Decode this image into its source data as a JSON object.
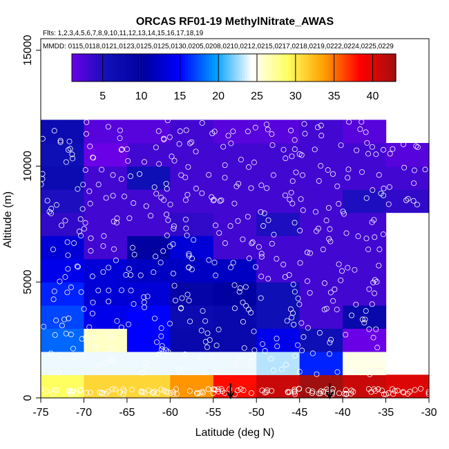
{
  "chart_data": {
    "type": "heatmap",
    "title": "ORCAS RF01-19 MethylNitrate_AWAS",
    "subtitle_flights": "Flts: 1,2,3,4,5,6,7,8,9,10,11,12,13,14,15,16,17,18,19",
    "subtitle_mmdd": "MMDD: 0115,0118,0121,0123,0125,0125,0130,0205,0208,0210,0212,0215,0217,0218,0219,0222,0224,0225,0229",
    "xlabel": "Latitude (deg N)",
    "ylabel": "Altitude (m)",
    "xlim": [
      -75,
      -30
    ],
    "ylim": [
      0,
      15500
    ],
    "x_ticks": [
      "-75",
      "-70",
      "-65",
      "-60",
      "-55",
      "-50",
      "-45",
      "-40",
      "-35",
      "-30"
    ],
    "y_ticks": [
      "0",
      "5000",
      "10000",
      "15000"
    ],
    "colorbar": {
      "range": [
        1,
        43
      ],
      "tick_labels": [
        "5",
        "10",
        "15",
        "20",
        "25",
        "30",
        "35",
        "40"
      ],
      "colors": [
        "#6a00e6",
        "#1010b8",
        "#0000a0",
        "#0000ff",
        "#00a0ff",
        "#ffffff",
        "#ffff60",
        "#ffa000",
        "#ff0000",
        "#a01010"
      ]
    },
    "bin_width_deg": 5,
    "bin_height_m": 1000,
    "lat_bins": [
      -75,
      -70,
      -65,
      -60,
      -55,
      -50,
      -45,
      -40,
      -35
    ],
    "alt_rows": [
      {
        "alt_bottom": 0,
        "values": [
          29,
          31,
          31,
          34,
          38,
          41,
          43,
          41,
          40
        ]
      },
      {
        "alt_bottom": 1000,
        "values": [
          24,
          24,
          24,
          24,
          24,
          23,
          16,
          25,
          null
        ]
      },
      {
        "alt_bottom": 2000,
        "values": [
          18,
          26,
          15,
          8,
          8,
          14,
          6,
          1,
          null
        ]
      },
      {
        "alt_bottom": 3000,
        "values": [
          17,
          14,
          15,
          7,
          8,
          6,
          3,
          8,
          null
        ]
      },
      {
        "alt_bottom": 4000,
        "values": [
          16,
          13,
          13,
          9,
          10,
          6,
          3,
          3,
          null
        ]
      },
      {
        "alt_bottom": 5000,
        "values": [
          14,
          13,
          12,
          12,
          12,
          3,
          3,
          3,
          null
        ]
      },
      {
        "alt_bottom": 6000,
        "values": [
          13,
          3,
          10,
          13,
          3,
          3,
          3,
          3,
          null
        ]
      },
      {
        "alt_bottom": 7000,
        "values": [
          4,
          3,
          3,
          4,
          3,
          5,
          3,
          3,
          null
        ]
      },
      {
        "alt_bottom": 8000,
        "values": [
          5,
          3,
          3,
          3,
          3,
          3,
          3,
          5,
          4
        ]
      },
      {
        "alt_bottom": 9000,
        "values": [
          7,
          3,
          6,
          3,
          3,
          3,
          3,
          3,
          3
        ]
      },
      {
        "alt_bottom": 10000,
        "values": [
          6,
          1,
          3,
          3,
          3,
          3,
          3,
          3,
          2
        ]
      },
      {
        "alt_bottom": 11000,
        "values": [
          7,
          2,
          2,
          3,
          2,
          2,
          3,
          2,
          null
        ]
      }
    ],
    "arrows_lat": [
      -53,
      -41.5
    ],
    "sample_markers_note": "open circles mark individual sample locations"
  }
}
